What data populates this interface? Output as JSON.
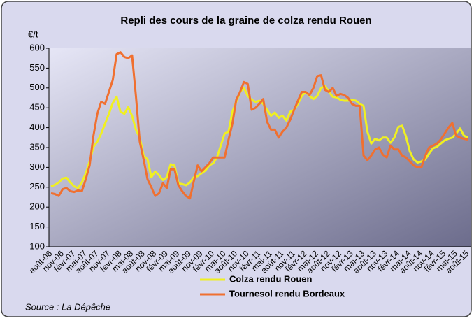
{
  "chart_data": {
    "type": "line",
    "title": "Repli des cours de la graine de colza rendu Rouen",
    "y_label": "€/t",
    "source": "Source : La Dépêche",
    "categories": [
      "août-06",
      null,
      null,
      "nov-06",
      null,
      null,
      "févr-07",
      null,
      null,
      "mai-07",
      null,
      null,
      "août-07",
      null,
      null,
      "nov-07",
      null,
      null,
      "févr-08",
      null,
      null,
      "mai-08",
      null,
      null,
      "août-08",
      null,
      null,
      "nov-08",
      null,
      null,
      "févr-09",
      null,
      null,
      "mai-09",
      null,
      null,
      "août-09",
      null,
      null,
      "nov-09",
      null,
      null,
      "févr-10",
      null,
      null,
      "mai-10",
      null,
      null,
      "août-10",
      null,
      null,
      "nov-10",
      null,
      null,
      "févr-11",
      null,
      null,
      "mai-11",
      null,
      null,
      "août-11",
      null,
      null,
      "nov-11",
      null,
      null,
      "févr-12",
      null,
      null,
      "mai-12",
      null,
      null,
      "août-12",
      null,
      null,
      "nov-12",
      null,
      null,
      "févr-13",
      null,
      null,
      "mai-13",
      null,
      null,
      "août-13",
      null,
      null,
      "nov-13",
      null,
      null,
      "févr-14",
      null,
      null,
      "mai-14",
      null,
      null,
      "août-14",
      null,
      null,
      "nov-14",
      null,
      null,
      "févr-15",
      null,
      null,
      "mai-15",
      null,
      null,
      "août-15"
    ],
    "series": [
      {
        "name": "Colza rendu Rouen",
        "color": "#f0f020",
        "values": [
          252,
          256,
          262,
          272,
          274,
          262,
          252,
          248,
          262,
          285,
          315,
          352,
          365,
          385,
          410,
          435,
          462,
          478,
          440,
          435,
          452,
          430,
          395,
          375,
          330,
          320,
          275,
          290,
          280,
          268,
          275,
          308,
          305,
          260,
          258,
          255,
          262,
          275,
          278,
          285,
          292,
          305,
          310,
          325,
          355,
          385,
          390,
          440,
          465,
          490,
          500,
          480,
          470,
          465,
          468,
          460,
          445,
          430,
          438,
          425,
          430,
          418,
          440,
          445,
          460,
          480,
          490,
          480,
          472,
          480,
          500,
          505,
          490,
          478,
          476,
          470,
          468,
          468,
          470,
          468,
          460,
          455,
          390,
          360,
          372,
          368,
          375,
          375,
          362,
          375,
          402,
          405,
          378,
          340,
          320,
          312,
          315,
          320,
          335,
          348,
          352,
          360,
          368,
          372,
          375,
          385,
          398,
          380,
          375
        ]
      },
      {
        "name": "Tournesol rendu Bordeaux",
        "color": "#f07030",
        "values": [
          235,
          233,
          228,
          245,
          248,
          240,
          238,
          242,
          240,
          270,
          305,
          380,
          435,
          465,
          460,
          490,
          520,
          585,
          590,
          578,
          575,
          582,
          480,
          365,
          320,
          270,
          250,
          228,
          235,
          260,
          248,
          295,
          295,
          255,
          240,
          228,
          222,
          265,
          305,
          290,
          300,
          310,
          325,
          325,
          325,
          325,
          370,
          410,
          470,
          490,
          515,
          510,
          445,
          450,
          460,
          472,
          415,
          395,
          395,
          375,
          390,
          400,
          420,
          445,
          468,
          490,
          490,
          482,
          500,
          530,
          532,
          495,
          490,
          500,
          480,
          485,
          482,
          475,
          460,
          455,
          455,
          330,
          318,
          330,
          345,
          350,
          332,
          325,
          355,
          345,
          345,
          330,
          325,
          315,
          305,
          300,
          300,
          330,
          350,
          355,
          360,
          370,
          385,
          400,
          412,
          380,
          375,
          372,
          370
        ]
      }
    ],
    "ylim": [
      100,
      600
    ],
    "yticks": [
      100,
      150,
      200,
      250,
      300,
      350,
      400,
      450,
      500,
      550,
      600
    ],
    "grid": false
  }
}
